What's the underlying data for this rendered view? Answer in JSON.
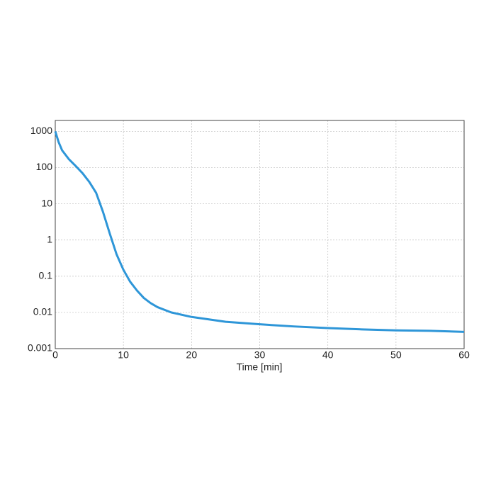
{
  "chart_data": {
    "type": "line",
    "xlabel": "Time [min]",
    "x": [
      0,
      0.5,
      1,
      2,
      3,
      4,
      5,
      6,
      7,
      8,
      9,
      10,
      11,
      12,
      13,
      14,
      15,
      17,
      20,
      25,
      30,
      35,
      40,
      45,
      50,
      55,
      60
    ],
    "values": [
      1000,
      500,
      300,
      170,
      110,
      70,
      40,
      20,
      6,
      1.5,
      0.4,
      0.15,
      0.07,
      0.04,
      0.025,
      0.018,
      0.014,
      0.01,
      0.0075,
      0.0055,
      0.0047,
      0.0041,
      0.0037,
      0.0034,
      0.0032,
      0.0031,
      0.0029
    ],
    "color": "#2e96d8",
    "xlim": [
      0,
      60
    ],
    "xticks": [
      0,
      10,
      20,
      30,
      40,
      50,
      60
    ],
    "ylim": [
      0.001,
      2000
    ],
    "yticks": [
      0.001,
      0.01,
      0.1,
      1,
      10,
      100,
      1000
    ],
    "yscale": "log",
    "grid": true
  }
}
